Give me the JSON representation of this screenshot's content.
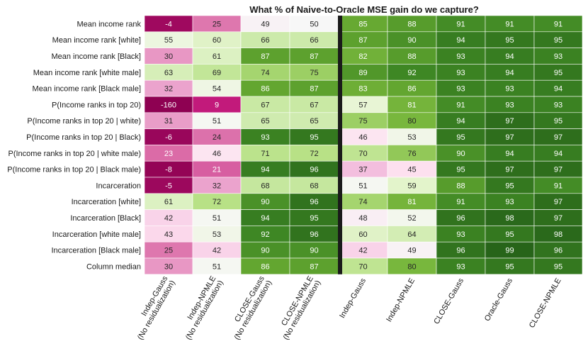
{
  "chart_data": {
    "type": "heatmap",
    "title": "What % of Naive-to-Oracle MSE gain do we capture?",
    "rows": [
      "Mean income rank",
      "Mean income rank [white]",
      "Mean income rank [Black]",
      "Mean income rank [white male]",
      "Mean income rank [Black male]",
      "P(Income ranks in top 20)",
      "P(Income ranks in top 20 | white)",
      "P(Income ranks in top 20 | Black)",
      "P(Income ranks in top 20 | white male)",
      "P(Income ranks in top 20 | Black male)",
      "Incarceration",
      "Incarceration [white]",
      "Incarceration [Black]",
      "Incarceration [white male]",
      "Incarceration [Black male]",
      "Column median"
    ],
    "columns": [
      [
        "Indep-Gauss",
        "(No residualization)"
      ],
      [
        "Indep-NPMLE",
        "(No residualization)"
      ],
      [
        "CLOSE-Gauss",
        "(No residualization)"
      ],
      [
        "CLOSE-NPMLE",
        "(No residualization)"
      ],
      [
        "Indep-Gauss"
      ],
      [
        "Indep-NPMLE"
      ],
      [
        "CLOSE-Gauss"
      ],
      [
        "Oracle-Gauss"
      ],
      [
        "CLOSE-NPMLE"
      ]
    ],
    "values": [
      [
        -4,
        25,
        49,
        50,
        85,
        88,
        91,
        91,
        91
      ],
      [
        55,
        60,
        66,
        66,
        87,
        90,
        94,
        95,
        95
      ],
      [
        30,
        61,
        87,
        87,
        82,
        88,
        93,
        94,
        93
      ],
      [
        63,
        69,
        74,
        75,
        89,
        92,
        93,
        94,
        95
      ],
      [
        32,
        54,
        86,
        87,
        83,
        86,
        93,
        93,
        94
      ],
      [
        -160,
        9,
        67,
        67,
        57,
        81,
        91,
        93,
        93
      ],
      [
        31,
        51,
        65,
        65,
        75,
        80,
        94,
        97,
        95
      ],
      [
        -6,
        24,
        93,
        95,
        46,
        53,
        95,
        97,
        97
      ],
      [
        23,
        46,
        71,
        72,
        70,
        76,
        90,
        94,
        94
      ],
      [
        -8,
        21,
        94,
        96,
        37,
        45,
        95,
        97,
        97
      ],
      [
        -5,
        32,
        68,
        68,
        51,
        59,
        88,
        95,
        91
      ],
      [
        61,
        72,
        90,
        96,
        74,
        81,
        91,
        93,
        97
      ],
      [
        42,
        51,
        94,
        95,
        48,
        52,
        96,
        98,
        97
      ],
      [
        43,
        53,
        92,
        96,
        60,
        64,
        93,
        95,
        98
      ],
      [
        25,
        42,
        90,
        90,
        42,
        49,
        96,
        99,
        96
      ],
      [
        30,
        51,
        86,
        87,
        70,
        80,
        93,
        95,
        95
      ]
    ],
    "colormap": "PiYG",
    "color_center": 50,
    "divider_after_column": 4,
    "divider_color": "#1a1a1a",
    "grid": false,
    "legend": "none"
  }
}
